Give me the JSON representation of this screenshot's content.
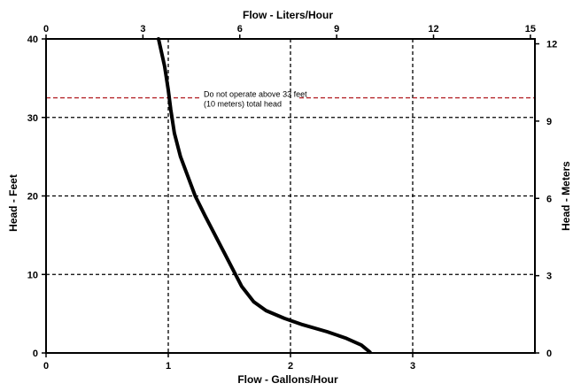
{
  "chart_data": {
    "type": "line",
    "title": "",
    "xlabel": "Flow - Gallons/Hour",
    "ylabel": "Head - Feet",
    "xlabel_top": "Flow - Liters/Hour",
    "ylabel_right": "Head - Meters",
    "xlim": [
      0,
      4
    ],
    "ylim": [
      0,
      40
    ],
    "x_ticks": [
      0,
      1,
      2,
      3
    ],
    "y_ticks": [
      0,
      10,
      20,
      30,
      40
    ],
    "top_axis": {
      "lim": [
        0,
        15.14
      ],
      "ticks": [
        0,
        3,
        6,
        9,
        12,
        15
      ]
    },
    "right_axis": {
      "lim": [
        0,
        12.19
      ],
      "ticks": [
        0,
        3,
        6,
        9,
        12
      ]
    },
    "grid": "dashed",
    "series": [
      {
        "x": [
          0.92,
          0.97,
          1.0,
          1.02,
          1.05,
          1.1,
          1.16,
          1.22,
          1.3,
          1.4,
          1.5,
          1.6,
          1.7,
          1.8,
          1.95,
          2.1,
          2.3,
          2.45,
          2.58,
          2.65
        ],
        "y": [
          40.0,
          36.5,
          33.5,
          31.0,
          28.0,
          25.0,
          22.5,
          20.0,
          17.5,
          14.5,
          11.5,
          8.5,
          6.5,
          5.4,
          4.4,
          3.6,
          2.7,
          1.9,
          1.0,
          0.1
        ]
      }
    ],
    "annotations": [
      {
        "text_line1": "Do not operate above 33 feet",
        "text_line2": "(10 meters) total head",
        "y": 32.5,
        "color": "#b5262b"
      }
    ],
    "colors": {
      "curve": "#000000",
      "grid": "#000000",
      "limit_line": "#b5262b"
    }
  }
}
